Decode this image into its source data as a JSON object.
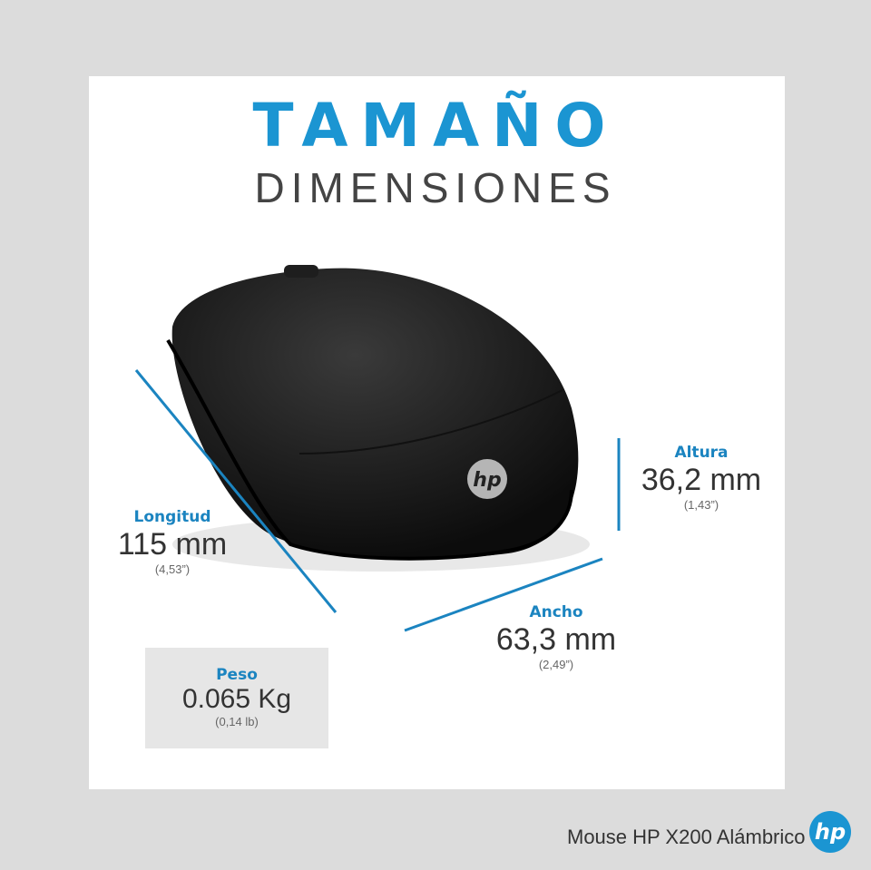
{
  "title": "TAMAÑO",
  "subtitle": "DIMENSIONES",
  "dimensions": {
    "length": {
      "label": "Longitud",
      "value": "115 mm",
      "imperial": "(4,53”)"
    },
    "height": {
      "label": "Altura",
      "value": "36,2 mm",
      "imperial": "(1,43”)"
    },
    "width": {
      "label": "Ancho",
      "value": "63,3 mm",
      "imperial": "(2,49”)"
    },
    "weight": {
      "label": "Peso",
      "value": "0.065 Kg",
      "imperial": "(0,14 lb)"
    }
  },
  "footer": {
    "product_name": "Mouse HP X200 Alámbrico",
    "logo": "hp"
  },
  "colors": {
    "accent": "#1b95d2",
    "background": "#dcdcdc",
    "panel": "#ffffff"
  }
}
